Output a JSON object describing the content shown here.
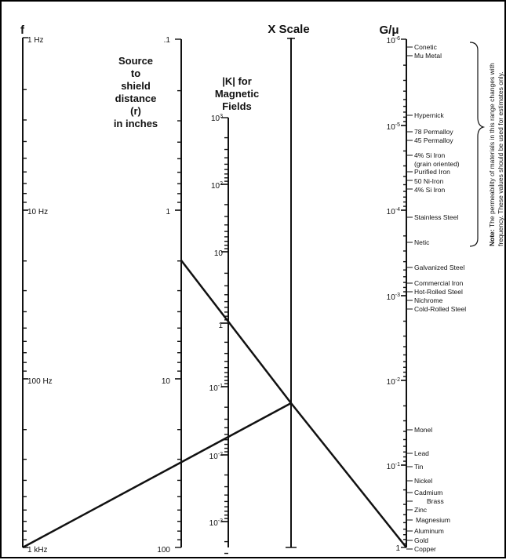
{
  "headers": {
    "f": "f",
    "x_scale": "X Scale",
    "g_mu": "G/μ",
    "distance": [
      "Source",
      "to",
      "shield",
      "distance",
      "(r)",
      "in inches"
    ],
    "k": [
      "|K| for",
      "Magnetic",
      "Fields"
    ]
  },
  "f_scale": {
    "labels": [
      "1 Hz",
      "10 Hz",
      "100 Hz",
      "1 kHz"
    ]
  },
  "r_scale": {
    "labels": [
      ".1",
      "1",
      "10",
      "100"
    ]
  },
  "k_scale": {
    "labels": [
      "10^3",
      "10^2",
      "10",
      "1",
      "10^-1",
      "10^-2",
      "10^-3"
    ]
  },
  "g_scale": {
    "labels": [
      "10^-6",
      "10^-5",
      "10^-4",
      "10^-3",
      "10^-2",
      "10^-1",
      "1"
    ],
    "materials": [
      "Conetic",
      "Mu Metal",
      "Hypernick",
      "78 Permalloy",
      "45 Permalloy",
      "4% Si Iron",
      "(grain oriented)",
      "Purified Iron",
      "50 Ni-Iron",
      "4% Si Iron",
      "Stainless Steel",
      "Netic",
      "Galvanized Steel",
      "Commercial Iron",
      "Hot-Rolled Steel",
      "Nichrome",
      "Cold-Rolled Steel",
      "Monel",
      "Lead",
      "Tin",
      "Nickel",
      "Cadmium",
      "Brass",
      "Zinc",
      "Magnesium",
      "Aluminum",
      "Gold",
      "Copper"
    ]
  },
  "note": {
    "bold": "Note:",
    "line1": " The permeability of materials in this range changes with",
    "line2": "frequency. These values should be used for estimates only."
  }
}
